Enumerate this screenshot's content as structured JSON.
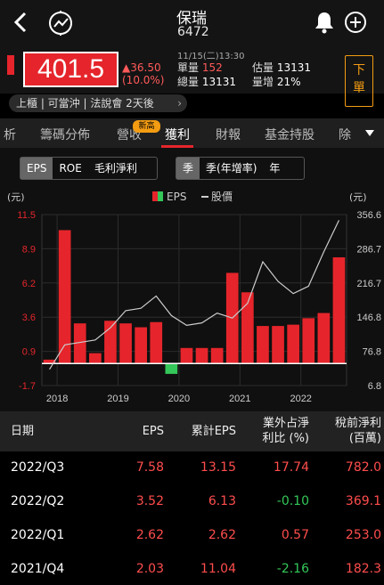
{
  "header": {
    "name": "保瑞",
    "code": "6472"
  },
  "quote": {
    "price": "401.5",
    "change": "▲36.50",
    "change_pct": "(10.0%)",
    "datetime": "11/15(二)13:30",
    "volume_label": "單量",
    "volume_value": "152",
    "total_label": "總量",
    "total_value": "13131",
    "est_label": "估量",
    "est_value": "13131",
    "inc_label": "量增",
    "inc_value": "21%",
    "order_label": "下\n單"
  },
  "info": {
    "text": "上櫃 | 可當沖 | 法說會 2天後",
    "chevron": "›"
  },
  "tabs": {
    "items": [
      "析",
      "籌碼分佈",
      "營收",
      "獲利",
      "財報",
      "基金持股",
      "除"
    ],
    "badge": "新高",
    "active": "獲利"
  },
  "segments": {
    "metric": [
      "EPS",
      "ROE",
      "毛利淨利"
    ],
    "period": [
      "季",
      "季(年增率)",
      "年"
    ]
  },
  "chart_data": {
    "type": "bar",
    "legend": [
      "EPS",
      "股價"
    ],
    "left_unit": "(元)",
    "right_unit": "(元)",
    "left_ticks": [
      "11.5",
      "8.9",
      "6.2",
      "3.6",
      "0.9",
      "-1.7"
    ],
    "right_ticks": [
      "356.6",
      "286.7",
      "216.7",
      "146.8",
      "76.8",
      "6.8"
    ],
    "ylim_left": [
      -1.7,
      11.5
    ],
    "ylim_right": [
      6.8,
      356.6
    ],
    "x_labels": [
      "2018",
      "2019",
      "2020",
      "2021",
      "2022"
    ],
    "eps_values": [
      0.3,
      10.3,
      3.1,
      0.8,
      3.3,
      3.1,
      2.8,
      3.2,
      -0.8,
      1.2,
      1.2,
      1.2,
      7.0,
      5.5,
      2.9,
      2.9,
      3.0,
      3.5,
      3.9,
      8.2
    ],
    "eps_colors": [
      "r",
      "r",
      "r",
      "r",
      "r",
      "r",
      "r",
      "r",
      "g",
      "r",
      "r",
      "r",
      "r",
      "r",
      "r",
      "r",
      "r",
      "r",
      "r",
      "r"
    ],
    "price_line": [
      40,
      90,
      95,
      100,
      125,
      160,
      165,
      190,
      150,
      130,
      135,
      155,
      145,
      175,
      260,
      220,
      195,
      210,
      280,
      345
    ],
    "colors": {
      "up": "#e5252b",
      "down": "#34c759",
      "line": "#cccccc"
    }
  },
  "table": {
    "headers": [
      "日期",
      "EPS",
      "累計EPS",
      "業外占淨\n利比 (%)",
      "稅前淨利\n(百萬)"
    ],
    "rows": [
      {
        "date": "2022/Q3",
        "eps": "7.58",
        "cum": "13.15",
        "ratio": "17.74",
        "ratio_color": "red",
        "pretax": "782.0"
      },
      {
        "date": "2022/Q2",
        "eps": "3.52",
        "cum": "6.13",
        "ratio": "-0.10",
        "ratio_color": "green",
        "pretax": "369.1"
      },
      {
        "date": "2022/Q1",
        "eps": "2.62",
        "cum": "2.62",
        "ratio": "0.57",
        "ratio_color": "red",
        "pretax": "253.0"
      },
      {
        "date": "2021/Q4",
        "eps": "2.03",
        "cum": "11.04",
        "ratio": "-2.16",
        "ratio_color": "green",
        "pretax": "182.3"
      }
    ]
  }
}
